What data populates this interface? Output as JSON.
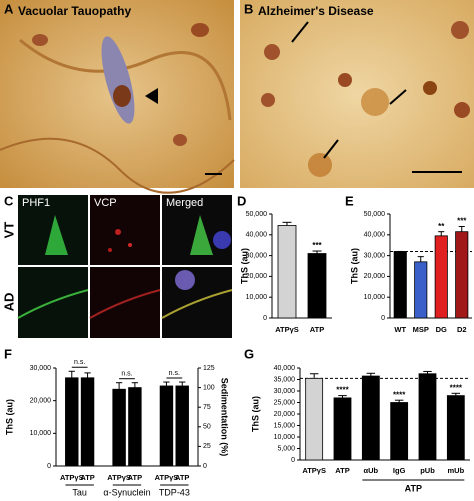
{
  "panels": {
    "A": {
      "label": "A",
      "title": "Vacuolar Tauopathy"
    },
    "B": {
      "label": "B",
      "title": "Alzheimer's Disease"
    },
    "C": {
      "label": "C",
      "columns": [
        "PHF1",
        "VCP",
        "Merged"
      ],
      "rows": [
        "VT",
        "AD"
      ]
    }
  },
  "chart_data": [
    {
      "type": "bar",
      "label": "D",
      "ylabel": "ThS (au)",
      "categories": [
        "ATPγS",
        "ATP"
      ],
      "values": [
        44500,
        31000
      ],
      "errors": [
        1500,
        1200
      ],
      "colors": [
        "#d3d3d3",
        "#000000"
      ],
      "significance": [
        null,
        "***"
      ],
      "ylim": [
        0,
        50000
      ],
      "yticks": [
        0,
        {
          "value": 10000,
          "label": "10,000"
        },
        {
          "value": 20000,
          "label": "20,000"
        },
        {
          "value": 30000,
          "label": "30,000"
        },
        {
          "value": 40000,
          "label": "40,000"
        },
        {
          "value": 50000,
          "label": "50,000"
        }
      ]
    },
    {
      "type": "bar",
      "label": "E",
      "ylabel": "ThS (au)",
      "categories": [
        "WT",
        "MSP",
        "DG",
        "D2"
      ],
      "values": [
        32000,
        27000,
        39500,
        41500
      ],
      "errors": [
        0,
        2500,
        2000,
        2500
      ],
      "colors": [
        "#000000",
        "#3a5fc8",
        "#e02020",
        "#a01818"
      ],
      "significance": [
        null,
        null,
        "**",
        "***"
      ],
      "reference_line": 32000,
      "ylim": [
        0,
        50000
      ],
      "yticks": [
        0,
        {
          "value": 10000,
          "label": "10,000"
        },
        {
          "value": 20000,
          "label": "20,000"
        },
        {
          "value": 30000,
          "label": "30,000"
        },
        {
          "value": 40000,
          "label": "40,000"
        },
        {
          "value": 50000,
          "label": "50,000"
        }
      ]
    },
    {
      "type": "bar",
      "label": "F",
      "ylabel": "ThS (au)",
      "y2label": "Sedimentation (%)",
      "categories": [
        "ATPγS",
        "ATP",
        "ATPγS",
        "ATP",
        "ATPγS",
        "ATP"
      ],
      "values": [
        27000,
        27000,
        23500,
        24000,
        24500,
        24500
      ],
      "errors": [
        2000,
        1500,
        2000,
        1500,
        1200,
        1200
      ],
      "colors": [
        "#000000",
        "#000000",
        "#000000",
        "#000000",
        "#000000",
        "#000000"
      ],
      "groups": [
        "Tau",
        "α-Synuclein",
        "TDP-43"
      ],
      "group_significance": [
        "n.s.",
        "n.s.",
        "n.s."
      ],
      "ylim": [
        0,
        30000
      ],
      "yticks": [
        0,
        {
          "value": 10000,
          "label": "10,000"
        },
        {
          "value": 20000,
          "label": "20,000"
        },
        {
          "value": 30000,
          "label": "30,000"
        }
      ],
      "y2lim": [
        0,
        125
      ],
      "y2ticks": [
        0,
        25,
        50,
        75,
        100,
        125
      ]
    },
    {
      "type": "bar",
      "label": "G",
      "ylabel": "ThS (au)",
      "categories": [
        "ATPγS",
        "ATP",
        "αUb",
        "IgG",
        "pUb",
        "mUb"
      ],
      "values": [
        35500,
        27000,
        36500,
        25000,
        37500,
        28000
      ],
      "errors": [
        2000,
        1000,
        1200,
        1000,
        1000,
        1000
      ],
      "colors": [
        "#d3d3d3",
        "#000000",
        "#000000",
        "#000000",
        "#000000",
        "#000000"
      ],
      "significance": [
        null,
        "****",
        null,
        "****",
        null,
        "****"
      ],
      "reference_line": 35500,
      "group": "ATP",
      "ylim": [
        0,
        40000
      ],
      "yticks": [
        0,
        {
          "value": 5000,
          "label": "5,000"
        },
        {
          "value": 10000,
          "label": "10,000"
        },
        {
          "value": 15000,
          "label": "15,000"
        },
        {
          "value": 20000,
          "label": "20,000"
        },
        {
          "value": 25000,
          "label": "25,000"
        },
        {
          "value": 30000,
          "label": "30,000"
        },
        {
          "value": 35000,
          "label": "35,000"
        },
        {
          "value": 40000,
          "label": "40,000"
        }
      ]
    }
  ]
}
